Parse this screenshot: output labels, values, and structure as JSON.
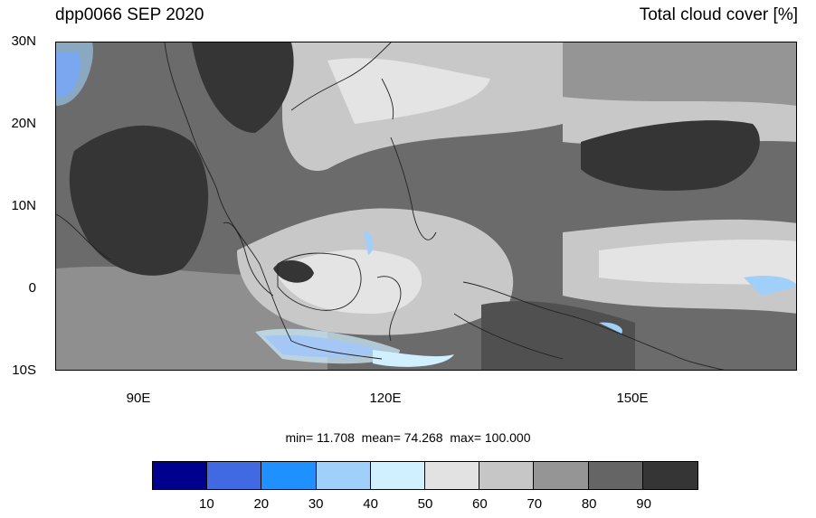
{
  "header": {
    "left_title": "dpp0066 SEP 2020",
    "right_title": "Total cloud cover [%]"
  },
  "axes": {
    "lat_labels": [
      "30N",
      "20N",
      "10N",
      "0",
      "10S"
    ],
    "lon_labels": [
      "90E",
      "120E",
      "150E"
    ],
    "lon_range": [
      80,
      170
    ],
    "lat_range": [
      -10,
      30
    ]
  },
  "stats": {
    "min_label": "min=",
    "min_value": "11.708",
    "mean_label": "mean=",
    "mean_value": "74.268",
    "max_label": "max=",
    "max_value": "100.000"
  },
  "colorbar": {
    "colors": [
      "#00008f",
      "#4169e1",
      "#1e90ff",
      "#a0d0fa",
      "#d0f0ff",
      "#e2e2e2",
      "#c6c6c6",
      "#959595",
      "#656565",
      "#353535"
    ],
    "tick_labels": [
      "10",
      "20",
      "30",
      "40",
      "50",
      "60",
      "70",
      "80",
      "90"
    ]
  },
  "map": {
    "variable": "Total cloud cover",
    "units": "%"
  }
}
